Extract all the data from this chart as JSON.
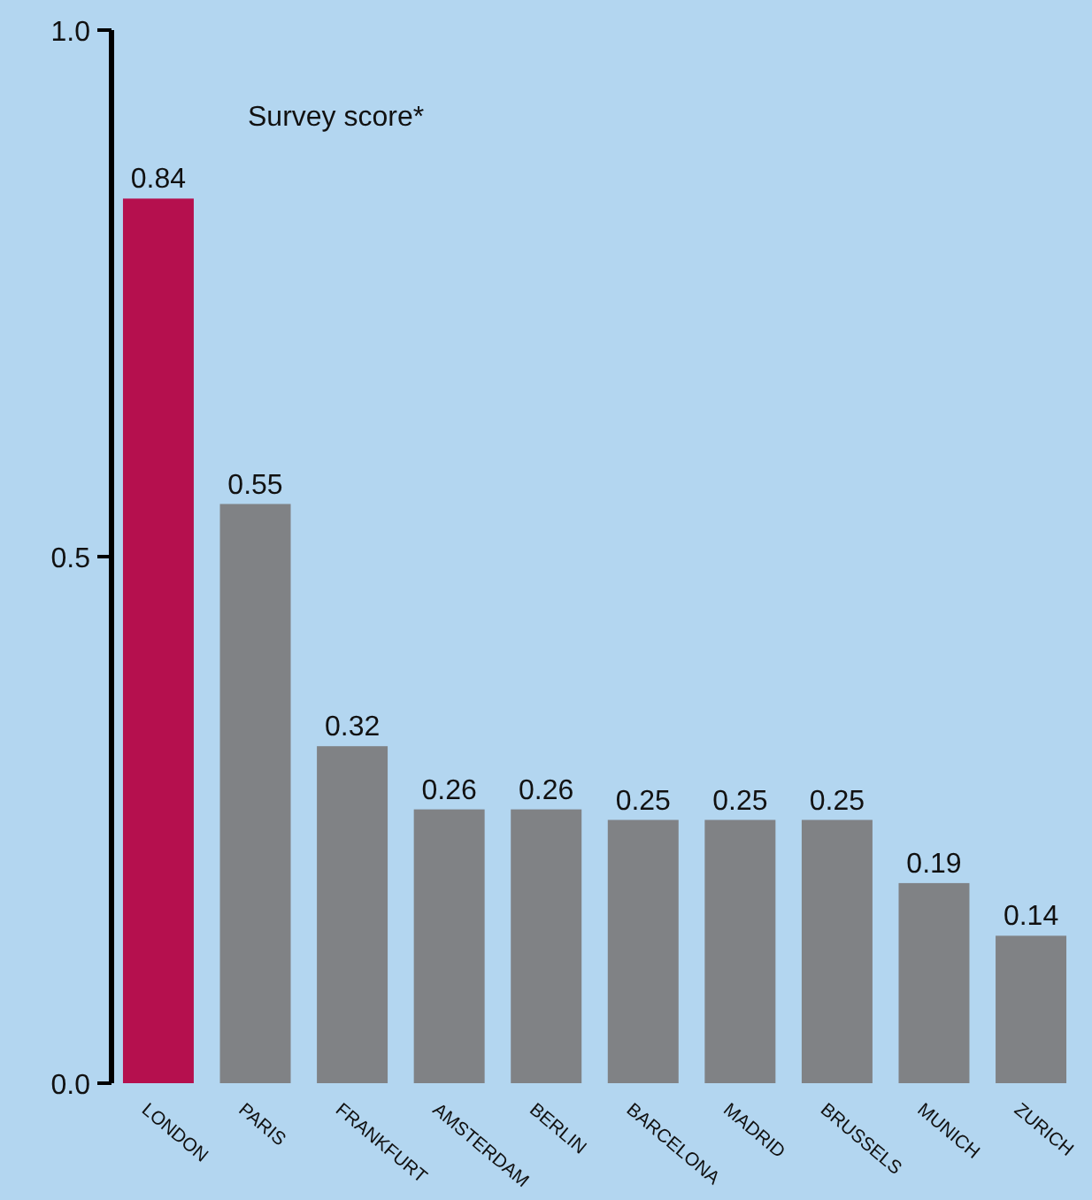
{
  "chart_data": {
    "type": "bar",
    "title": "Survey score*",
    "categories": [
      "LONDON",
      "PARIS",
      "FRANKFURT",
      "AMSTERDAM",
      "BERLIN",
      "BARCELONA",
      "MADRID",
      "BRUSSELS",
      "MUNICH",
      "ZURICH"
    ],
    "values": [
      0.84,
      0.55,
      0.32,
      0.26,
      0.26,
      0.25,
      0.25,
      0.25,
      0.19,
      0.14
    ],
    "colors": [
      "#b5104e",
      "#808285",
      "#808285",
      "#808285",
      "#808285",
      "#808285",
      "#808285",
      "#808285",
      "#808285",
      "#808285"
    ],
    "ylim": [
      0,
      1
    ],
    "yticks": [
      {
        "value": 0,
        "label": "0.0"
      },
      {
        "value": 0.5,
        "label": "0.5"
      },
      {
        "value": 1,
        "label": "1.0"
      }
    ],
    "data_labels": true
  }
}
